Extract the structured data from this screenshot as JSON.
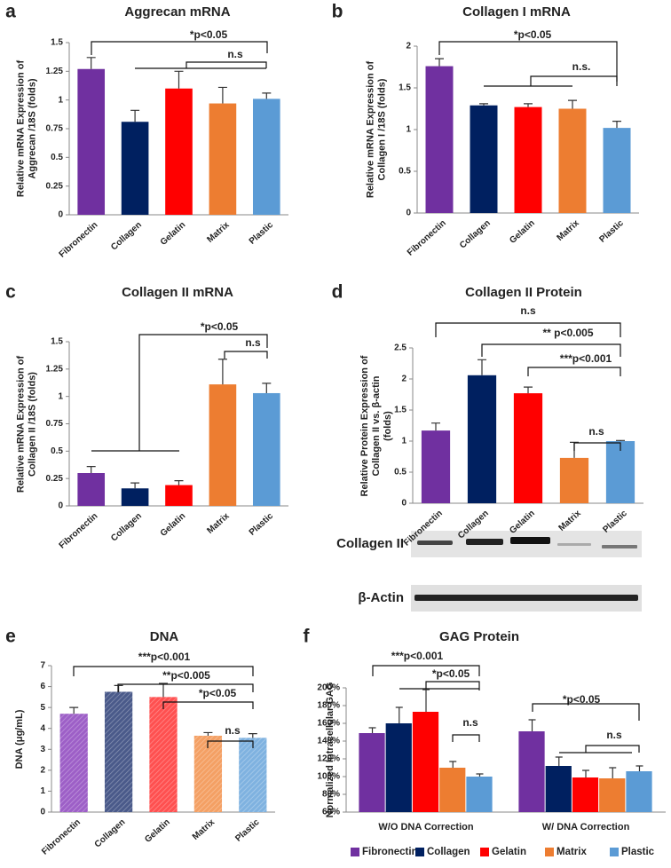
{
  "chart_data": [
    {
      "panel": "a",
      "type": "bar",
      "title": "Aggrecan mRNA",
      "ylabel": [
        "Relative mRNA Expression of",
        "Aggrecan /18S (folds)"
      ],
      "categories": [
        "Fibronectin",
        "Collagen",
        "Gelatin",
        "Matrix",
        "Plastic"
      ],
      "values": [
        1.27,
        0.81,
        1.1,
        0.97,
        1.01
      ],
      "errors": [
        0.1,
        0.1,
        0.15,
        0.14,
        0.05
      ],
      "colors": [
        "#7030a0",
        "#002060",
        "#ff0000",
        "#ed7d31",
        "#5b9bd5"
      ],
      "ylim": [
        0,
        1.5
      ],
      "yticks": [
        0,
        0.25,
        0.5,
        0.75,
        1,
        1.25,
        1.5
      ],
      "annotations": [
        "*p<0.05",
        "n.s"
      ]
    },
    {
      "panel": "b",
      "type": "bar",
      "title": "Collagen I mRNA",
      "ylabel": [
        "Relative mRNA Expression of",
        "Collagen I /18S (folds)"
      ],
      "categories": [
        "Fibronectin",
        "Collagen",
        "Gelatin",
        "Matrix",
        "Plastic"
      ],
      "values": [
        1.76,
        1.29,
        1.27,
        1.25,
        1.02
      ],
      "errors": [
        0.09,
        0.02,
        0.04,
        0.1,
        0.08
      ],
      "colors": [
        "#7030a0",
        "#002060",
        "#ff0000",
        "#ed7d31",
        "#5b9bd5"
      ],
      "ylim": [
        0,
        2
      ],
      "yticks": [
        0,
        0.5,
        1,
        1.5,
        2
      ],
      "annotations": [
        "*p<0.05",
        "n.s."
      ]
    },
    {
      "panel": "c",
      "type": "bar",
      "title": "Collagen II mRNA",
      "ylabel": [
        "Relative mRNA Expression of",
        "Collagen II /18S (folds)"
      ],
      "categories": [
        "Fibronectin",
        "Collagen",
        "Gelatin",
        "Matrix",
        "Plastic"
      ],
      "values": [
        0.3,
        0.16,
        0.19,
        1.11,
        1.03
      ],
      "errors": [
        0.06,
        0.05,
        0.04,
        0.23,
        0.09
      ],
      "colors": [
        "#7030a0",
        "#002060",
        "#ff0000",
        "#ed7d31",
        "#5b9bd5"
      ],
      "ylim": [
        0,
        1.5
      ],
      "yticks": [
        0,
        0.25,
        0.5,
        0.75,
        1,
        1.25,
        1.5
      ],
      "annotations": [
        "*p<0.05",
        "n.s"
      ]
    },
    {
      "panel": "d",
      "type": "bar",
      "title": "Collagen II Protein",
      "ylabel": [
        "Relative Protein Expression of",
        "Collagen II vs. β-actin",
        "(folds)"
      ],
      "categories": [
        "Fibronectin",
        "Collagen",
        "Gelatin",
        "Matrix",
        "Plastic"
      ],
      "values": [
        1.17,
        2.06,
        1.77,
        0.73,
        1.0
      ],
      "errors": [
        0.12,
        0.25,
        0.1,
        0.25,
        0.01
      ],
      "colors": [
        "#7030a0",
        "#002060",
        "#ff0000",
        "#ed7d31",
        "#5b9bd5"
      ],
      "ylim": [
        0,
        2.5
      ],
      "yticks": [
        0,
        0.5,
        1,
        1.5,
        2,
        2.5
      ],
      "annotations": [
        "n.s",
        "** p<0.005",
        "***p<0.001",
        "n.s"
      ],
      "blot_labels": [
        "Collagen II",
        "β-Actin"
      ]
    },
    {
      "panel": "e",
      "type": "bar",
      "title": "DNA",
      "ylabel": [
        "DNA (μg/mL)"
      ],
      "categories": [
        "Fibronectin",
        "Collagen",
        "Gelatin",
        "Matrix",
        "Plastic"
      ],
      "values": [
        4.7,
        5.75,
        5.5,
        3.65,
        3.55
      ],
      "errors": [
        0.3,
        0.3,
        0.65,
        0.15,
        0.2
      ],
      "colors": [
        "#9d5fc7",
        "#4a5a8a",
        "#ff5050",
        "#f4a064",
        "#7fb2e0"
      ],
      "pattern": "hatched",
      "ylim": [
        0,
        7
      ],
      "yticks": [
        0,
        1,
        2,
        3,
        4,
        5,
        6,
        7
      ],
      "annotations": [
        "***p<0.001",
        "**p<0.005",
        "*p<0.05",
        "n.s"
      ]
    },
    {
      "panel": "f",
      "type": "grouped_bar",
      "title": "GAG Protein",
      "ylabel": [
        "Normalized Intracellular GAG"
      ],
      "categories": [
        "W/O DNA Correction",
        "W/ DNA Correction"
      ],
      "series": [
        {
          "name": "Fibronectin",
          "color": "#7030a0",
          "values": [
            149,
            151
          ],
          "errors": [
            6,
            13
          ]
        },
        {
          "name": "Collagen",
          "color": "#002060",
          "values": [
            160,
            112
          ],
          "errors": [
            18,
            10
          ]
        },
        {
          "name": "Gelatin",
          "color": "#ff0000",
          "values": [
            173,
            99
          ],
          "errors": [
            25,
            8
          ]
        },
        {
          "name": "Matrix",
          "color": "#ed7d31",
          "values": [
            110,
            98
          ],
          "errors": [
            7,
            12
          ]
        },
        {
          "name": "Plastic",
          "color": "#5b9bd5",
          "values": [
            100,
            106
          ],
          "errors": [
            3,
            6
          ]
        }
      ],
      "ylim": [
        60,
        200
      ],
      "yticks": [
        {
          "value": 60,
          "label": "60%"
        },
        {
          "value": 80,
          "label": "80%"
        },
        {
          "value": 100,
          "label": "100%"
        },
        {
          "value": 120,
          "label": "120%"
        },
        {
          "value": 140,
          "label": "140%"
        },
        {
          "value": 160,
          "label": "160%"
        },
        {
          "value": 180,
          "label": "180%"
        },
        {
          "value": 200,
          "label": "200%"
        }
      ],
      "legend": "bottom",
      "annotations": [
        "***p<0.001",
        "*p<0.05",
        "n.s",
        "*p<0.05",
        "n.s"
      ]
    }
  ]
}
